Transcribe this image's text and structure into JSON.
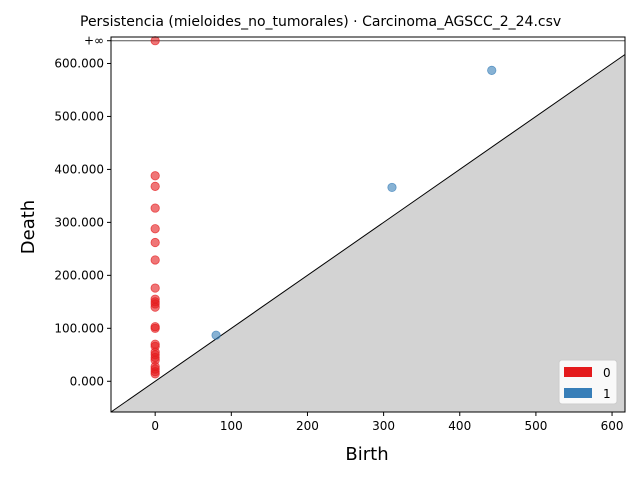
{
  "chart_data": {
    "type": "scatter",
    "title": "Persistencia (mieloides_no_tumorales) · Carcinoma_AGSCC_2_24.csv",
    "xlabel": "Birth",
    "ylabel": "Death",
    "xlim": [
      -58,
      617
    ],
    "ylim": [
      -58,
      650
    ],
    "x_ticks": [
      0,
      100,
      200,
      300,
      400,
      500,
      600
    ],
    "x_tick_labels": [
      "0",
      "100",
      "200",
      "300",
      "400",
      "500",
      "600"
    ],
    "y_ticks": [
      0,
      100,
      200,
      300,
      400,
      500,
      600
    ],
    "y_tick_labels": [
      "0.000",
      "100.000",
      "200.000",
      "300.000",
      "400.000",
      "500.000",
      "600.000"
    ],
    "infinity_label": "+∞",
    "infinity_y": 643,
    "legend_position": "lower-right",
    "diagonal": true,
    "grid": false,
    "series": [
      {
        "name": "0",
        "color": "#e41a1c",
        "points": [
          {
            "x": 0,
            "y": "inf"
          },
          {
            "x": 0,
            "y": 388
          },
          {
            "x": 0,
            "y": 368
          },
          {
            "x": 0,
            "y": 327
          },
          {
            "x": 0,
            "y": 288
          },
          {
            "x": 0,
            "y": 262
          },
          {
            "x": 0,
            "y": 229
          },
          {
            "x": 0,
            "y": 176
          },
          {
            "x": 0,
            "y": 155
          },
          {
            "x": 0,
            "y": 150
          },
          {
            "x": 0,
            "y": 146
          },
          {
            "x": 0,
            "y": 140
          },
          {
            "x": 0,
            "y": 103
          },
          {
            "x": 0,
            "y": 100
          },
          {
            "x": 0,
            "y": 70
          },
          {
            "x": 0,
            "y": 66
          },
          {
            "x": 0,
            "y": 55
          },
          {
            "x": 0,
            "y": 50
          },
          {
            "x": 0,
            "y": 45
          },
          {
            "x": 0,
            "y": 40
          },
          {
            "x": 0,
            "y": 28
          },
          {
            "x": 0,
            "y": 23
          },
          {
            "x": 0,
            "y": 18
          },
          {
            "x": 0,
            "y": 14
          }
        ]
      },
      {
        "name": "1",
        "color": "#377eb8",
        "points": [
          {
            "x": 80,
            "y": 87
          },
          {
            "x": 311,
            "y": 366
          },
          {
            "x": 442,
            "y": 587
          }
        ]
      }
    ]
  }
}
